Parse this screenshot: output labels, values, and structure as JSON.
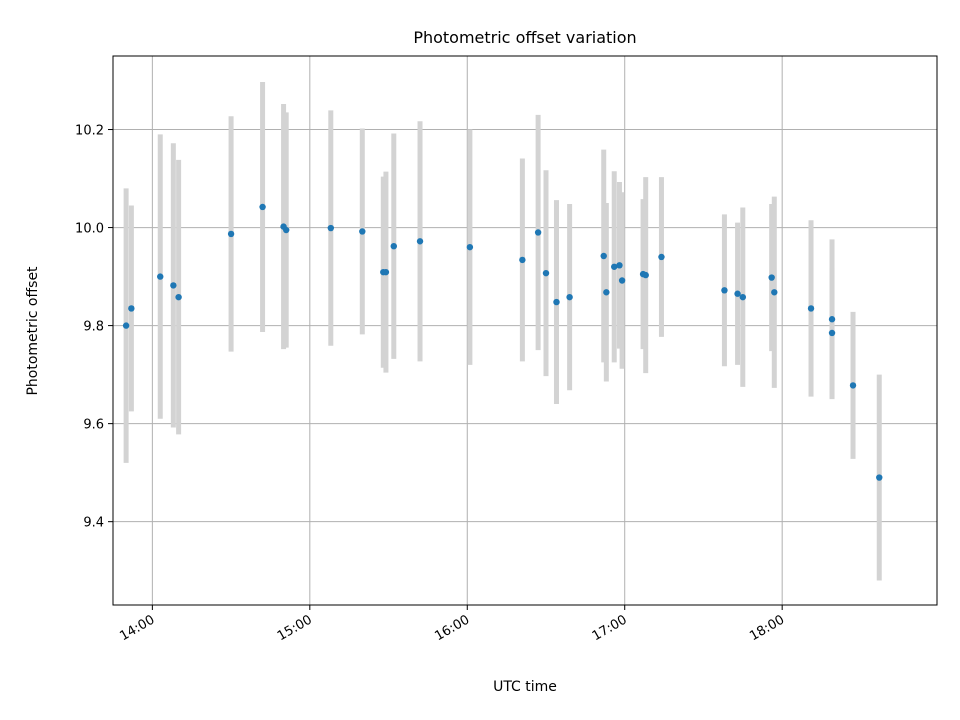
{
  "chart_data": {
    "type": "scatter",
    "title": "Photometric offset variation",
    "xlabel": "UTC time",
    "ylabel": "Photometric offset",
    "x_tick_labels": [
      "14:00",
      "15:00",
      "16:00",
      "17:00",
      "18:00"
    ],
    "x_tick_values": [
      "14:00",
      "15:00",
      "16:00",
      "17:00",
      "18:00"
    ],
    "y_tick_labels": [
      "9.4",
      "9.6",
      "9.8",
      "10.0",
      "10.2"
    ],
    "y_tick_values": [
      9.4,
      9.6,
      9.8,
      10.0,
      10.2
    ],
    "xlim": [
      "13:45",
      "18:59"
    ],
    "ylim": [
      9.23,
      10.35
    ],
    "grid": true,
    "colors": {
      "point": "#1f77b4",
      "errorbar": "#d3d3d3",
      "grid": "#b0b0b0"
    },
    "points": [
      {
        "time": "13:50",
        "y": 9.8,
        "err": 0.28
      },
      {
        "time": "13:52",
        "y": 9.835,
        "err": 0.21
      },
      {
        "time": "14:03",
        "y": 9.9,
        "err": 0.29
      },
      {
        "time": "14:08",
        "y": 9.882,
        "err": 0.29
      },
      {
        "time": "14:10",
        "y": 9.858,
        "err": 0.28
      },
      {
        "time": "14:30",
        "y": 9.987,
        "err": 0.24
      },
      {
        "time": "14:42",
        "y": 10.042,
        "err": 0.255
      },
      {
        "time": "14:50",
        "y": 10.002,
        "err": 0.25
      },
      {
        "time": "14:51",
        "y": 9.995,
        "err": 0.24
      },
      {
        "time": "15:08",
        "y": 9.999,
        "err": 0.24
      },
      {
        "time": "15:20",
        "y": 9.992,
        "err": 0.21
      },
      {
        "time": "15:28",
        "y": 9.909,
        "err": 0.195
      },
      {
        "time": "15:29",
        "y": 9.909,
        "err": 0.205
      },
      {
        "time": "15:32",
        "y": 9.962,
        "err": 0.23
      },
      {
        "time": "15:42",
        "y": 9.972,
        "err": 0.245
      },
      {
        "time": "16:01",
        "y": 9.96,
        "err": 0.24
      },
      {
        "time": "16:21",
        "y": 9.934,
        "err": 0.207
      },
      {
        "time": "16:27",
        "y": 9.99,
        "err": 0.24
      },
      {
        "time": "16:30",
        "y": 9.907,
        "err": 0.21
      },
      {
        "time": "16:34",
        "y": 9.848,
        "err": 0.208
      },
      {
        "time": "16:39",
        "y": 9.858,
        "err": 0.19
      },
      {
        "time": "16:52",
        "y": 9.942,
        "err": 0.217
      },
      {
        "time": "16:53",
        "y": 9.868,
        "err": 0.182
      },
      {
        "time": "16:56",
        "y": 9.92,
        "err": 0.195
      },
      {
        "time": "16:58",
        "y": 9.923,
        "err": 0.17
      },
      {
        "time": "16:59",
        "y": 9.892,
        "err": 0.18
      },
      {
        "time": "17:07",
        "y": 9.905,
        "err": 0.153
      },
      {
        "time": "17:08",
        "y": 9.903,
        "err": 0.2
      },
      {
        "time": "17:14",
        "y": 9.94,
        "err": 0.163
      },
      {
        "time": "17:38",
        "y": 9.872,
        "err": 0.155
      },
      {
        "time": "17:43",
        "y": 9.865,
        "err": 0.145
      },
      {
        "time": "17:45",
        "y": 9.858,
        "err": 0.183
      },
      {
        "time": "17:56",
        "y": 9.898,
        "err": 0.15
      },
      {
        "time": "17:57",
        "y": 9.868,
        "err": 0.195
      },
      {
        "time": "18:11",
        "y": 9.835,
        "err": 0.18
      },
      {
        "time": "18:19",
        "y": 9.813,
        "err": 0.163
      },
      {
        "time": "18:19",
        "y": 9.785,
        "err": 0.133
      },
      {
        "time": "18:27",
        "y": 9.678,
        "err": 0.15
      },
      {
        "time": "18:37",
        "y": 9.49,
        "err": 0.21
      }
    ]
  }
}
